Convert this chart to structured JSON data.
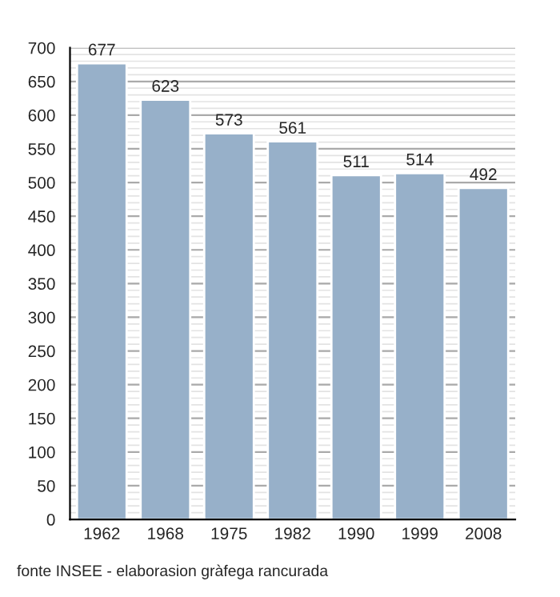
{
  "chart_data": {
    "type": "bar",
    "categories": [
      "1962",
      "1968",
      "1975",
      "1982",
      "1990",
      "1999",
      "2008"
    ],
    "values": [
      677,
      623,
      573,
      561,
      511,
      514,
      492
    ],
    "color": "#97b0c9",
    "ylim": [
      0,
      700
    ],
    "yticks": [
      0,
      50,
      100,
      150,
      200,
      250,
      300,
      350,
      400,
      450,
      500,
      550,
      600,
      650,
      700
    ],
    "grid": "y",
    "data_labels": true,
    "annotations": [
      "fonte INSEE - elaborasion gràfega rancurada"
    ]
  }
}
